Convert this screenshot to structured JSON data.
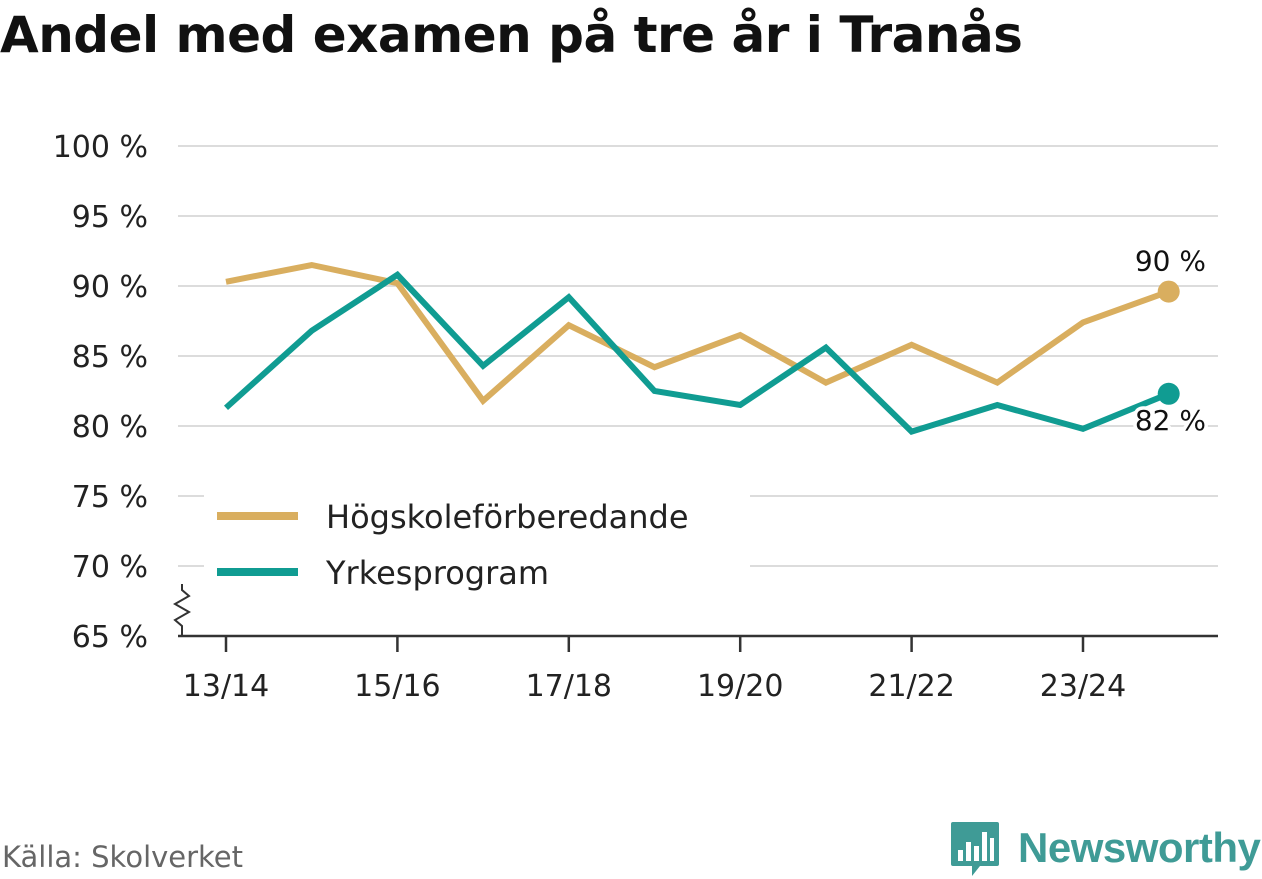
{
  "title": "Andel med examen på tre år i Tranås",
  "source": "Källa: Skolverket",
  "brand": "Newsworthy",
  "chart_data": {
    "type": "line",
    "title": "Andel med examen på tre år i Tranås",
    "xlabel": "",
    "ylabel": "",
    "categories": [
      "13/14",
      "14/15",
      "15/16",
      "16/17",
      "17/18",
      "18/19",
      "19/20",
      "20/21",
      "21/22",
      "22/23",
      "23/24",
      "24/25"
    ],
    "x_tick_labels": [
      "13/14",
      "15/16",
      "17/18",
      "19/20",
      "21/22",
      "23/24"
    ],
    "y_ticks": [
      65,
      70,
      75,
      80,
      85,
      90,
      95,
      100
    ],
    "y_tick_suffix": " %",
    "ylim": [
      65,
      100
    ],
    "axis_break": true,
    "grid": true,
    "legend_position": "bottom-left",
    "series": [
      {
        "name": "Högskoleförberedande",
        "color": "#d9ae5f",
        "values": [
          90.3,
          91.5,
          90.2,
          81.8,
          87.2,
          84.2,
          86.5,
          83.1,
          85.8,
          83.1,
          87.4,
          89.6
        ],
        "end_label": "90 %"
      },
      {
        "name": "Yrkesprogram",
        "color": "#109c92",
        "values": [
          81.3,
          86.8,
          90.8,
          84.3,
          89.2,
          82.5,
          81.5,
          85.6,
          79.6,
          81.5,
          79.8,
          82.3
        ],
        "end_label": "82 %"
      }
    ]
  }
}
